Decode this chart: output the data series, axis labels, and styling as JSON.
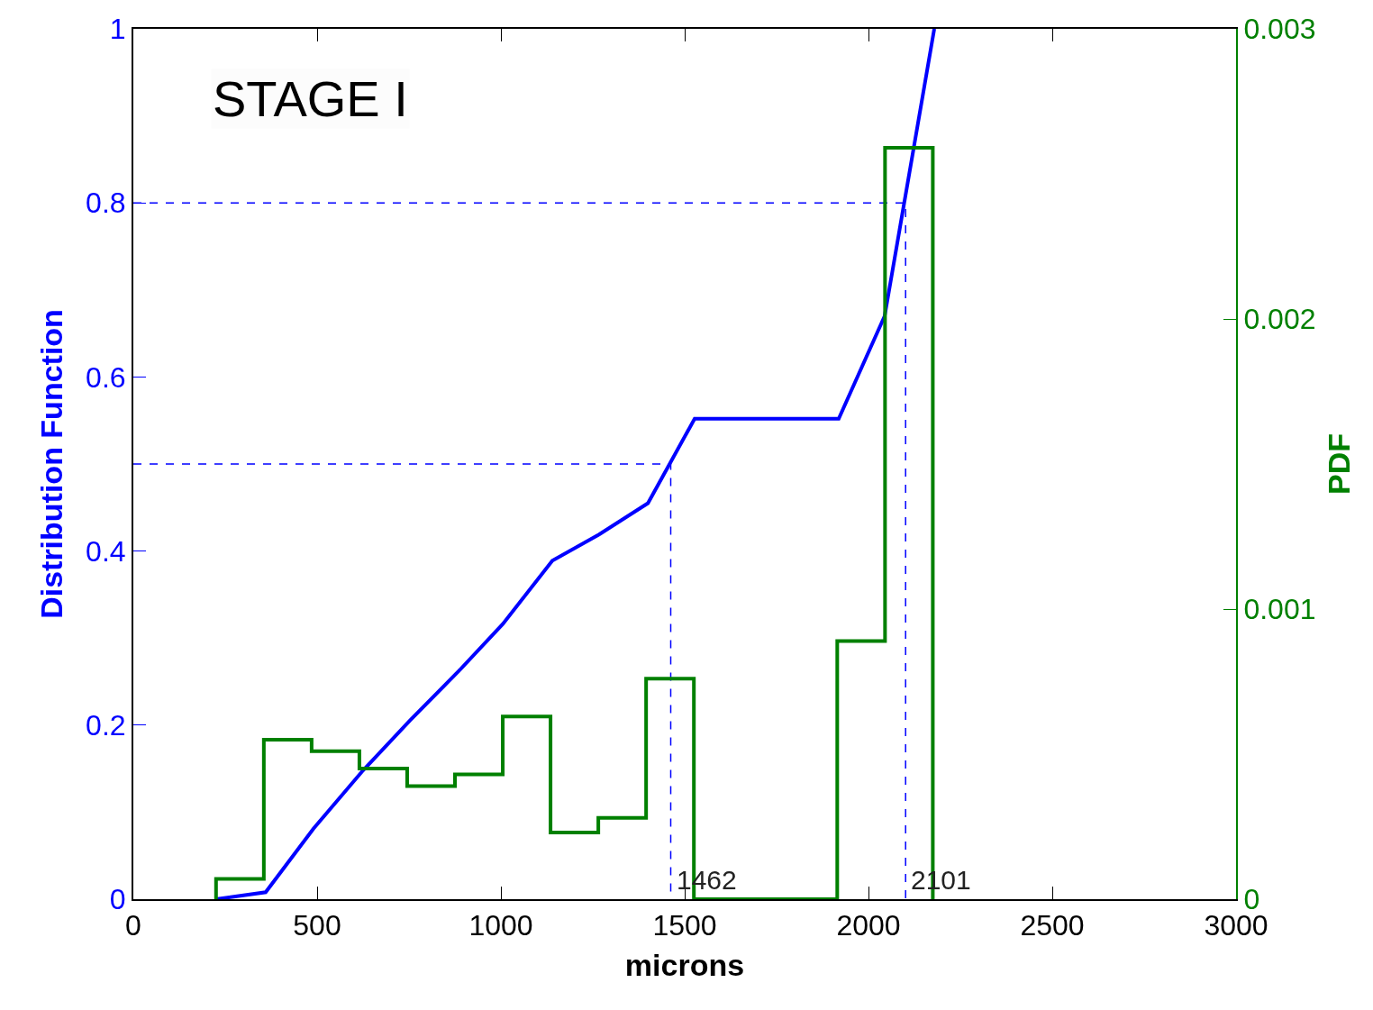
{
  "chart_data": {
    "type": "line",
    "xlabel": "microns",
    "ylabel": "Distribution Function",
    "y2label": "PDF",
    "xlim": [
      0,
      3000
    ],
    "xticks": [
      0,
      500,
      1000,
      1500,
      2000,
      2500,
      3000
    ],
    "ylim": [
      0,
      1
    ],
    "yticks": [
      0,
      0.2,
      0.4,
      0.6,
      0.8,
      1
    ],
    "y2lim": [
      0,
      0.003
    ],
    "y2ticks": [
      0,
      0.001,
      0.002,
      0.003
    ],
    "series": [
      {
        "type": "histogram",
        "axis": "y2",
        "color": "#008000",
        "bins": [
          225,
          355,
          485,
          615,
          745,
          875,
          1005,
          1135,
          1265,
          1395,
          1525,
          1655,
          1785,
          1915,
          2045,
          2175
        ],
        "values": [
          7e-05,
          0.00055,
          0.00051,
          0.00045,
          0.00039,
          0.00043,
          0.00063,
          0.00023,
          0.00028,
          0.00076,
          0,
          0,
          0,
          0.00089,
          0.00259
        ]
      },
      {
        "color": "#0000ff",
        "x": [
          225,
          360,
          490,
          625,
          752,
          885,
          1005,
          1140,
          1267,
          1400,
          1527,
          1919,
          2044,
          2179
        ],
        "values": [
          0,
          0.008,
          0.081,
          0.148,
          0.205,
          0.262,
          0.316,
          0.389,
          0.419,
          0.455,
          0.552,
          0.552,
          0.67,
          1.0
        ]
      },
      {
        "line_style": "dashed",
        "color": "#0000ff",
        "x": [
          0,
          1462,
          1462
        ],
        "values": [
          0.5,
          0.5,
          0
        ]
      },
      {
        "line_style": "dashed",
        "color": "#0000ff",
        "x": [
          0,
          2101,
          2101
        ],
        "values": [
          0.8,
          0.8,
          0
        ]
      }
    ],
    "annotations": [
      "STAGE I",
      {
        "text": "1462",
        "x": 1462,
        "y": 0
      },
      {
        "text": "2101",
        "x": 2101,
        "y": 0
      }
    ]
  }
}
